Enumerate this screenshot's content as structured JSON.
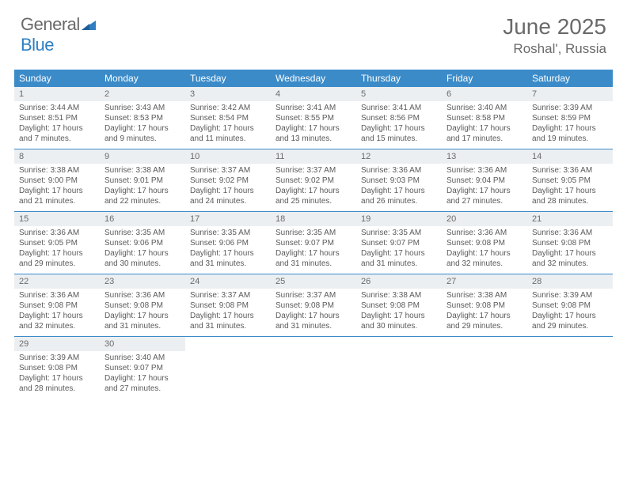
{
  "logo": {
    "text_general": "General",
    "text_blue": "Blue"
  },
  "title": "June 2025",
  "location": "Roshal', Russia",
  "colors": {
    "header_bg": "#3b8bc9",
    "header_text": "#ffffff",
    "daynum_bg": "#eceff1",
    "border": "#3b8bc9",
    "text": "#5a5a5a",
    "logo_gray": "#6a6a6a",
    "logo_blue": "#2f7ec2"
  },
  "day_names": [
    "Sunday",
    "Monday",
    "Tuesday",
    "Wednesday",
    "Thursday",
    "Friday",
    "Saturday"
  ],
  "days": [
    {
      "n": 1,
      "sr": "3:44 AM",
      "ss": "8:51 PM",
      "dl": "17 hours and 7 minutes."
    },
    {
      "n": 2,
      "sr": "3:43 AM",
      "ss": "8:53 PM",
      "dl": "17 hours and 9 minutes."
    },
    {
      "n": 3,
      "sr": "3:42 AM",
      "ss": "8:54 PM",
      "dl": "17 hours and 11 minutes."
    },
    {
      "n": 4,
      "sr": "3:41 AM",
      "ss": "8:55 PM",
      "dl": "17 hours and 13 minutes."
    },
    {
      "n": 5,
      "sr": "3:41 AM",
      "ss": "8:56 PM",
      "dl": "17 hours and 15 minutes."
    },
    {
      "n": 6,
      "sr": "3:40 AM",
      "ss": "8:58 PM",
      "dl": "17 hours and 17 minutes."
    },
    {
      "n": 7,
      "sr": "3:39 AM",
      "ss": "8:59 PM",
      "dl": "17 hours and 19 minutes."
    },
    {
      "n": 8,
      "sr": "3:38 AM",
      "ss": "9:00 PM",
      "dl": "17 hours and 21 minutes."
    },
    {
      "n": 9,
      "sr": "3:38 AM",
      "ss": "9:01 PM",
      "dl": "17 hours and 22 minutes."
    },
    {
      "n": 10,
      "sr": "3:37 AM",
      "ss": "9:02 PM",
      "dl": "17 hours and 24 minutes."
    },
    {
      "n": 11,
      "sr": "3:37 AM",
      "ss": "9:02 PM",
      "dl": "17 hours and 25 minutes."
    },
    {
      "n": 12,
      "sr": "3:36 AM",
      "ss": "9:03 PM",
      "dl": "17 hours and 26 minutes."
    },
    {
      "n": 13,
      "sr": "3:36 AM",
      "ss": "9:04 PM",
      "dl": "17 hours and 27 minutes."
    },
    {
      "n": 14,
      "sr": "3:36 AM",
      "ss": "9:05 PM",
      "dl": "17 hours and 28 minutes."
    },
    {
      "n": 15,
      "sr": "3:36 AM",
      "ss": "9:05 PM",
      "dl": "17 hours and 29 minutes."
    },
    {
      "n": 16,
      "sr": "3:35 AM",
      "ss": "9:06 PM",
      "dl": "17 hours and 30 minutes."
    },
    {
      "n": 17,
      "sr": "3:35 AM",
      "ss": "9:06 PM",
      "dl": "17 hours and 31 minutes."
    },
    {
      "n": 18,
      "sr": "3:35 AM",
      "ss": "9:07 PM",
      "dl": "17 hours and 31 minutes."
    },
    {
      "n": 19,
      "sr": "3:35 AM",
      "ss": "9:07 PM",
      "dl": "17 hours and 31 minutes."
    },
    {
      "n": 20,
      "sr": "3:36 AM",
      "ss": "9:08 PM",
      "dl": "17 hours and 32 minutes."
    },
    {
      "n": 21,
      "sr": "3:36 AM",
      "ss": "9:08 PM",
      "dl": "17 hours and 32 minutes."
    },
    {
      "n": 22,
      "sr": "3:36 AM",
      "ss": "9:08 PM",
      "dl": "17 hours and 32 minutes."
    },
    {
      "n": 23,
      "sr": "3:36 AM",
      "ss": "9:08 PM",
      "dl": "17 hours and 31 minutes."
    },
    {
      "n": 24,
      "sr": "3:37 AM",
      "ss": "9:08 PM",
      "dl": "17 hours and 31 minutes."
    },
    {
      "n": 25,
      "sr": "3:37 AM",
      "ss": "9:08 PM",
      "dl": "17 hours and 31 minutes."
    },
    {
      "n": 26,
      "sr": "3:38 AM",
      "ss": "9:08 PM",
      "dl": "17 hours and 30 minutes."
    },
    {
      "n": 27,
      "sr": "3:38 AM",
      "ss": "9:08 PM",
      "dl": "17 hours and 29 minutes."
    },
    {
      "n": 28,
      "sr": "3:39 AM",
      "ss": "9:08 PM",
      "dl": "17 hours and 29 minutes."
    },
    {
      "n": 29,
      "sr": "3:39 AM",
      "ss": "9:08 PM",
      "dl": "17 hours and 28 minutes."
    },
    {
      "n": 30,
      "sr": "3:40 AM",
      "ss": "9:07 PM",
      "dl": "17 hours and 27 minutes."
    }
  ],
  "labels": {
    "sunrise": "Sunrise: ",
    "sunset": "Sunset: ",
    "daylight": "Daylight: "
  },
  "start_weekday": 0,
  "total_days": 30
}
